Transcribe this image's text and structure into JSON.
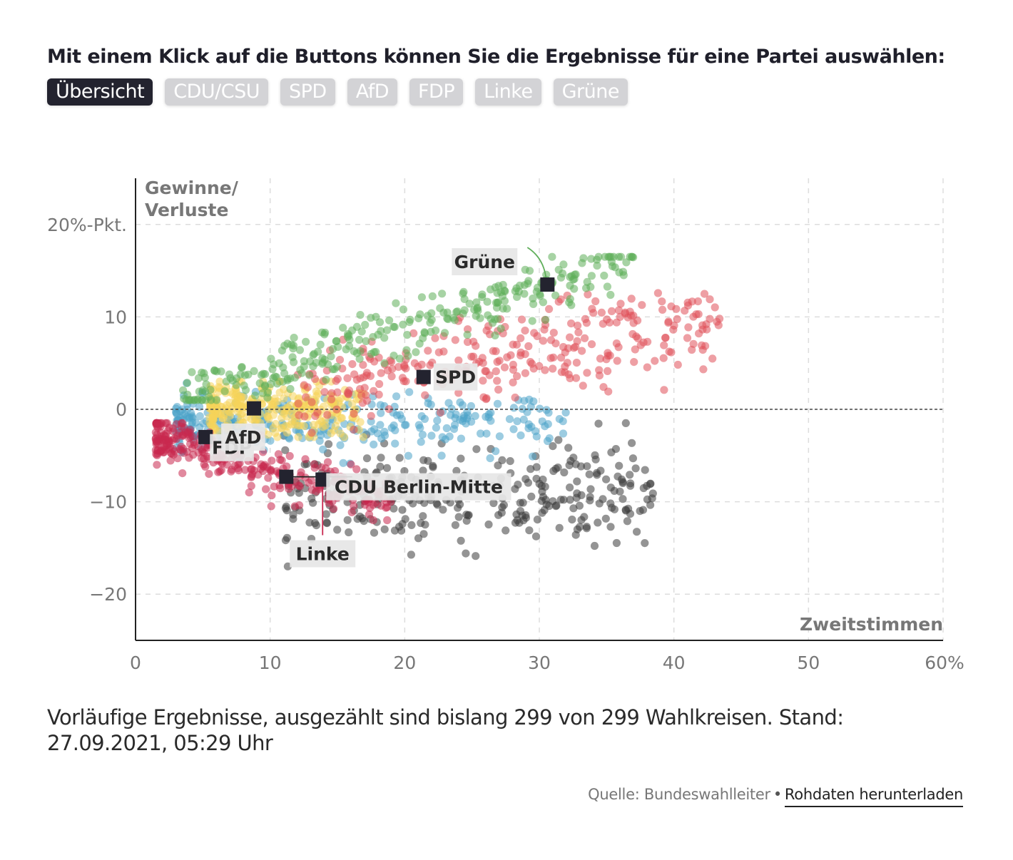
{
  "header": {
    "prompt": "Mit einem Klick auf die Buttons können Sie die Ergebnisse für eine Partei auswählen:"
  },
  "buttons": [
    {
      "label": "Übersicht",
      "active": true
    },
    {
      "label": "CDU/CSU",
      "active": false
    },
    {
      "label": "SPD",
      "active": false
    },
    {
      "label": "AfD",
      "active": false
    },
    {
      "label": "FDP",
      "active": false
    },
    {
      "label": "Linke",
      "active": false
    },
    {
      "label": "Grüne",
      "active": false
    }
  ],
  "colors": {
    "cdu": "#3d3d3d",
    "spd": "#e0505a",
    "afd": "#4aa3c8",
    "fdp": "#f5d35a",
    "linke": "#c8284f",
    "gruene": "#5fae5a",
    "marker": "#23232f",
    "label_bg": "#e6e6e6"
  },
  "chart_data": {
    "type": "scatter",
    "title": "",
    "ylabel": "Gewinne/ Verluste",
    "ylabel_lines": [
      "Gewinne/",
      "Verluste"
    ],
    "xlabel": "Zweitstimmen",
    "xlim": [
      0,
      60
    ],
    "ylim": [
      -25,
      25
    ],
    "x_ticks": [
      {
        "value": 0,
        "label": "0"
      },
      {
        "value": 10,
        "label": "10"
      },
      {
        "value": 20,
        "label": "20"
      },
      {
        "value": 30,
        "label": "30"
      },
      {
        "value": 40,
        "label": "40"
      },
      {
        "value": 50,
        "label": "50"
      },
      {
        "value": 60,
        "label": "60%"
      }
    ],
    "y_ticks": [
      {
        "value": 20,
        "label": "20%-Pkt."
      },
      {
        "value": 10,
        "label": "10"
      },
      {
        "value": 0,
        "label": "0"
      },
      {
        "value": -10,
        "label": "−10"
      },
      {
        "value": -20,
        "label": "−20"
      }
    ],
    "grid": true,
    "zero_line": true,
    "series": [
      {
        "name": "CDU/CSU",
        "color_key": "cdu",
        "count": 299,
        "x_range": [
          11,
          38.5
        ],
        "y_range": [
          -17,
          -1.5
        ],
        "trend": 0.05,
        "spread": 2.6
      },
      {
        "name": "SPD",
        "color_key": "spd",
        "count": 299,
        "x_range": [
          12,
          43.5
        ],
        "y_range": [
          -3,
          14
        ],
        "trend": 0.25,
        "spread": 2.4
      },
      {
        "name": "AfD",
        "color_key": "afd",
        "count": 299,
        "x_range": [
          3,
          32
        ],
        "y_range": [
          -6,
          3
        ],
        "trend": 0.02,
        "spread": 1.5
      },
      {
        "name": "FDP",
        "color_key": "fdp",
        "count": 299,
        "x_range": [
          5.5,
          17
        ],
        "y_range": [
          -3,
          3
        ],
        "trend": 0.0,
        "spread": 1.5
      },
      {
        "name": "Linke",
        "color_key": "linke",
        "count": 299,
        "x_range": [
          1.5,
          19
        ],
        "y_range": [
          -12,
          -1.5
        ],
        "trend": -0.45,
        "spread": 1.3
      },
      {
        "name": "Grüne",
        "color_key": "gruene",
        "count": 299,
        "x_range": [
          3.5,
          37
        ],
        "y_range": [
          1,
          16.5
        ],
        "trend": 0.45,
        "spread": 1.4
      }
    ],
    "highlight": {
      "name": "CDU Berlin-Mitte",
      "points": [
        {
          "party": "Grüne",
          "label": "Grüne",
          "x": 30.6,
          "y": 13.5
        },
        {
          "party": "SPD",
          "label": "SPD",
          "x": 21.4,
          "y": 3.5
        },
        {
          "party": "FDP",
          "label": "FDP",
          "x": 8.8,
          "y": 0.1
        },
        {
          "party": "AfD",
          "label": "AfD",
          "x": 5.2,
          "y": -3.0
        },
        {
          "party": "CDU/CSU",
          "label": "CDU Berlin-Mitte",
          "x": 11.2,
          "y": -7.3
        },
        {
          "party": "Linke",
          "label": "Linke",
          "x": 13.9,
          "y": -7.6
        }
      ]
    }
  },
  "footnote": "Vorläufige Ergebnisse, ausgezählt sind bislang 299 von 299 Wahlkreisen. Stand: 27.09.2021, 05:29 Uhr",
  "footer": {
    "source": "Quelle: Bundeswahlleiter",
    "download_link": "Rohdaten herunterladen"
  }
}
